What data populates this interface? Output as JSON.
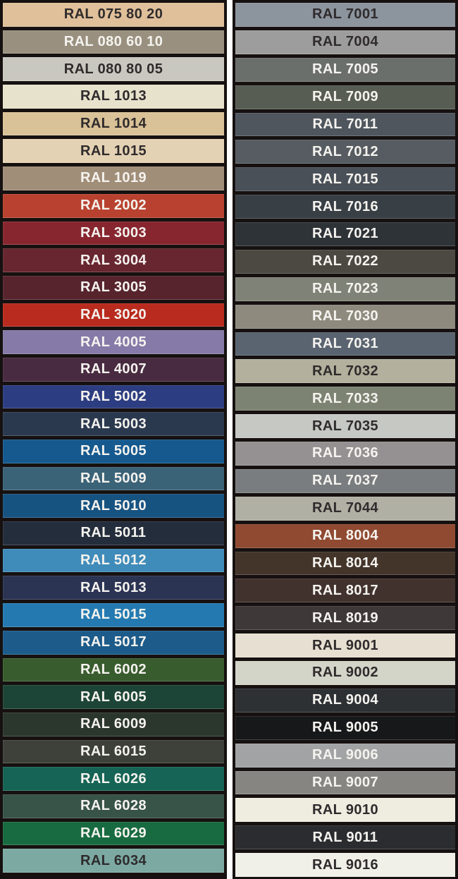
{
  "palette": {
    "frame_color": "#161110",
    "gutter_color": "#fdfdfd",
    "label_color_dark": "#2f2b2c",
    "label_color_light": "#f5f3ef",
    "columns": [
      {
        "name": "column-1",
        "swatches": [
          {
            "code": "RAL 075 80 20",
            "color": "#dfc09a",
            "text": "dark"
          },
          {
            "code": "RAL 080 60 10",
            "color": "#99907f",
            "text": "light"
          },
          {
            "code": "RAL 080 80 05",
            "color": "#c9c8c0",
            "text": "dark"
          },
          {
            "code": "RAL 1013",
            "color": "#e6e2cc",
            "text": "dark"
          },
          {
            "code": "RAL 1014",
            "color": "#dac298",
            "text": "dark"
          },
          {
            "code": "RAL 1015",
            "color": "#e4d2b4",
            "text": "dark"
          },
          {
            "code": "RAL 1019",
            "color": "#a18e79",
            "text": "light"
          },
          {
            "code": "RAL 2002",
            "color": "#b8422f",
            "text": "light"
          },
          {
            "code": "RAL 3003",
            "color": "#87262f",
            "text": "light"
          },
          {
            "code": "RAL 3004",
            "color": "#672630",
            "text": "light"
          },
          {
            "code": "RAL 3005",
            "color": "#57242e",
            "text": "light"
          },
          {
            "code": "RAL 3020",
            "color": "#b92b1e",
            "text": "light"
          },
          {
            "code": "RAL 4005",
            "color": "#857aa8",
            "text": "light"
          },
          {
            "code": "RAL 4007",
            "color": "#492b41",
            "text": "light"
          },
          {
            "code": "RAL 5002",
            "color": "#2d3d81",
            "text": "light"
          },
          {
            "code": "RAL 5003",
            "color": "#2b394f",
            "text": "light"
          },
          {
            "code": "RAL 5005",
            "color": "#15598f",
            "text": "light"
          },
          {
            "code": "RAL 5009",
            "color": "#3b6378",
            "text": "light"
          },
          {
            "code": "RAL 5010",
            "color": "#175381",
            "text": "light"
          },
          {
            "code": "RAL 5011",
            "color": "#242d3c",
            "text": "light"
          },
          {
            "code": "RAL 5012",
            "color": "#3f8bba",
            "text": "light"
          },
          {
            "code": "RAL 5013",
            "color": "#2b3453",
            "text": "light"
          },
          {
            "code": "RAL 5015",
            "color": "#247ab0",
            "text": "light"
          },
          {
            "code": "RAL 5017",
            "color": "#1c5b8a",
            "text": "light"
          },
          {
            "code": "RAL 6002",
            "color": "#395c2e",
            "text": "light"
          },
          {
            "code": "RAL 6005",
            "color": "#1d4537",
            "text": "light"
          },
          {
            "code": "RAL 6009",
            "color": "#2b362d",
            "text": "light"
          },
          {
            "code": "RAL 6015",
            "color": "#3e403a",
            "text": "light"
          },
          {
            "code": "RAL 6026",
            "color": "#166455",
            "text": "light"
          },
          {
            "code": "RAL 6028",
            "color": "#385348",
            "text": "light"
          },
          {
            "code": "RAL 6029",
            "color": "#186b40",
            "text": "light"
          },
          {
            "code": "RAL 6034",
            "color": "#7caaa3",
            "text": "dark"
          }
        ]
      },
      {
        "name": "column-2",
        "swatches": [
          {
            "code": "RAL 7001",
            "color": "#8c949e",
            "text": "dark"
          },
          {
            "code": "RAL 7004",
            "color": "#9d9d9d",
            "text": "dark"
          },
          {
            "code": "RAL 7005",
            "color": "#6b6f6c",
            "text": "light"
          },
          {
            "code": "RAL 7009",
            "color": "#585d53",
            "text": "light"
          },
          {
            "code": "RAL 7011",
            "color": "#4f565e",
            "text": "light"
          },
          {
            "code": "RAL 7012",
            "color": "#565c61",
            "text": "light"
          },
          {
            "code": "RAL 7015",
            "color": "#4a5058",
            "text": "light"
          },
          {
            "code": "RAL 7016",
            "color": "#383f45",
            "text": "light"
          },
          {
            "code": "RAL 7021",
            "color": "#2e3338",
            "text": "light"
          },
          {
            "code": "RAL 7022",
            "color": "#4b4942",
            "text": "light"
          },
          {
            "code": "RAL 7023",
            "color": "#7f8276",
            "text": "light"
          },
          {
            "code": "RAL 7030",
            "color": "#8e8a7e",
            "text": "light"
          },
          {
            "code": "RAL 7031",
            "color": "#5a6470",
            "text": "light"
          },
          {
            "code": "RAL 7032",
            "color": "#b3b09d",
            "text": "dark"
          },
          {
            "code": "RAL 7033",
            "color": "#7d8372",
            "text": "light"
          },
          {
            "code": "RAL 7035",
            "color": "#c6c8c3",
            "text": "dark"
          },
          {
            "code": "RAL 7036",
            "color": "#959192",
            "text": "light"
          },
          {
            "code": "RAL 7037",
            "color": "#7a7d7f",
            "text": "light"
          },
          {
            "code": "RAL 7044",
            "color": "#b1b0a5",
            "text": "dark"
          },
          {
            "code": "RAL 8004",
            "color": "#8f4a31",
            "text": "light"
          },
          {
            "code": "RAL 8014",
            "color": "#44352b",
            "text": "light"
          },
          {
            "code": "RAL 8017",
            "color": "#42322e",
            "text": "light"
          },
          {
            "code": "RAL 8019",
            "color": "#3f3839",
            "text": "light"
          },
          {
            "code": "RAL 9001",
            "color": "#e7e0d2",
            "text": "dark"
          },
          {
            "code": "RAL 9002",
            "color": "#d4d5c9",
            "text": "dark"
          },
          {
            "code": "RAL 9004",
            "color": "#2e3134",
            "text": "light"
          },
          {
            "code": "RAL 9005",
            "color": "#17181a",
            "text": "light"
          },
          {
            "code": "RAL 9006",
            "color": "#a2a3a4",
            "text": "light"
          },
          {
            "code": "RAL 9007",
            "color": "#868581",
            "text": "light"
          },
          {
            "code": "RAL 9010",
            "color": "#efece0",
            "text": "dark"
          },
          {
            "code": "RAL 9011",
            "color": "#2a2c2f",
            "text": "light"
          },
          {
            "code": "RAL 9016",
            "color": "#f0f0e9",
            "text": "dark"
          }
        ]
      }
    ]
  }
}
